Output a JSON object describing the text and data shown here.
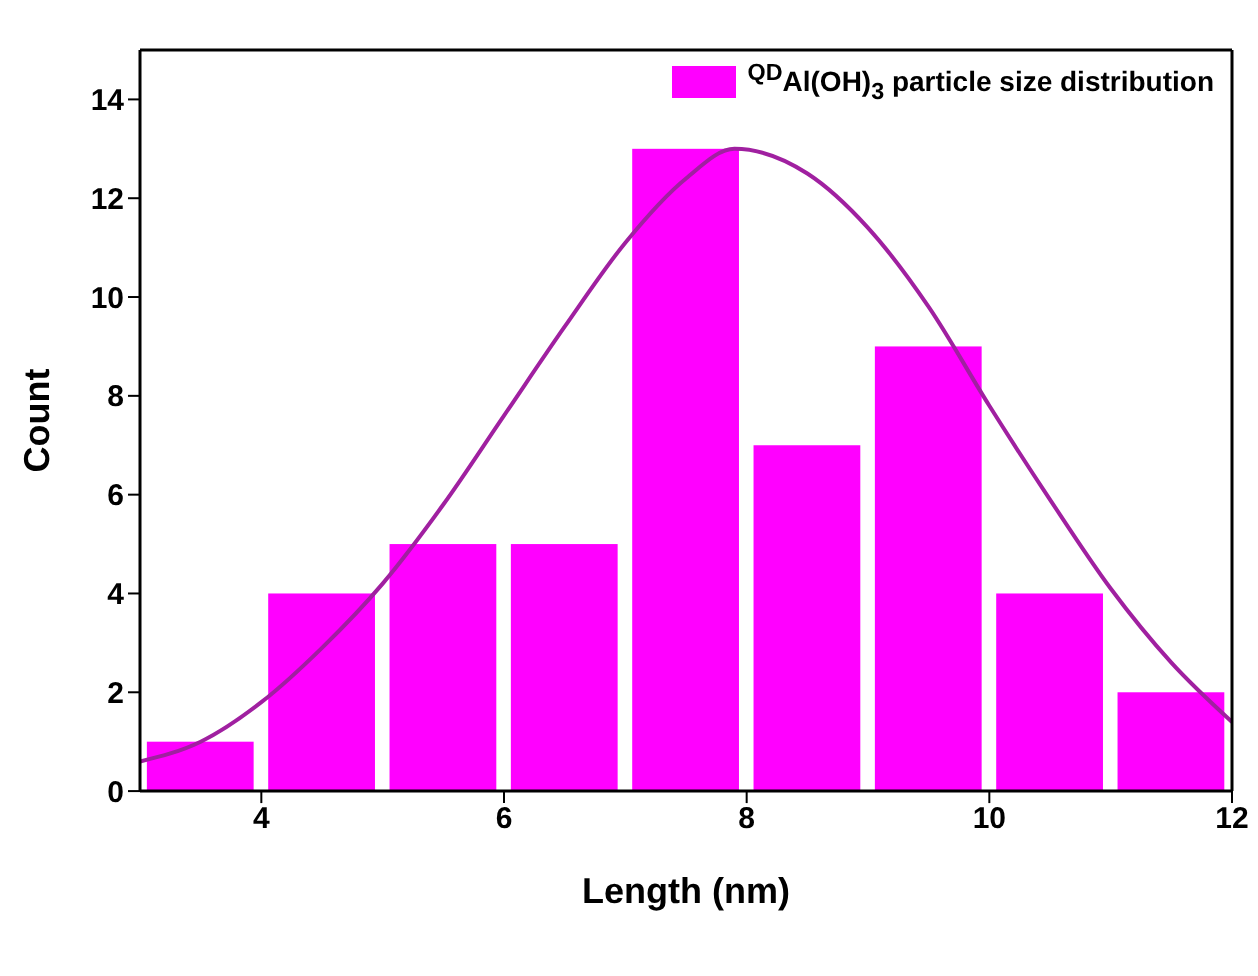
{
  "chart_data": {
    "type": "histogram",
    "xlabel": "Length (nm)",
    "ylabel": "Count",
    "bins": [
      3,
      4,
      5,
      6,
      7,
      8,
      9,
      10,
      11,
      12
    ],
    "xlim": [
      3,
      12
    ],
    "xticks": [
      4,
      6,
      8,
      10,
      12
    ],
    "ylim": [
      0,
      15
    ],
    "yticks": [
      0,
      2,
      4,
      6,
      8,
      10,
      12,
      14
    ],
    "legend": "top right",
    "series": [
      {
        "type": "histogram",
        "name": "$^{QD}$Al(OH)$_{3}$ particle size distribution",
        "color": "#ff00ff",
        "values": [
          1,
          4,
          5,
          5,
          13,
          7,
          9,
          4,
          2
        ]
      },
      {
        "type": "line",
        "color": "#a020a0",
        "x": [
          3,
          3.5,
          4,
          4.5,
          5,
          5.5,
          6,
          6.5,
          7,
          7.5,
          7.9,
          8.5,
          9,
          9.5,
          10,
          10.5,
          11,
          11.5,
          12
        ],
        "values": [
          0.6,
          1.0,
          1.8,
          2.9,
          4.2,
          5.8,
          7.6,
          9.4,
          11.1,
          12.4,
          13,
          12.5,
          11.4,
          9.8,
          7.8,
          5.9,
          4.1,
          2.6,
          1.4
        ]
      }
    ]
  }
}
